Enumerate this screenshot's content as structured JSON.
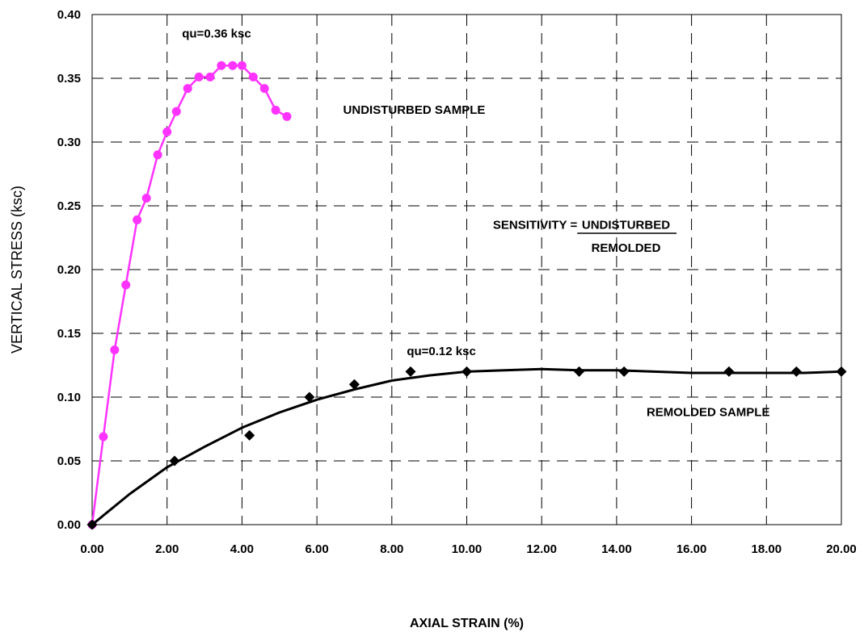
{
  "chart_data": {
    "type": "line",
    "title": "",
    "xlabel": "AXIAL STRAIN (%)",
    "ylabel": "VERTICAL STRESS (ksc)",
    "xlim": [
      0,
      20
    ],
    "ylim": [
      0,
      0.4
    ],
    "grid": true,
    "x_ticks": [
      "0.00",
      "2.00",
      "4.00",
      "6.00",
      "8.00",
      "10.00",
      "12.00",
      "14.00",
      "16.00",
      "18.00",
      "20.00"
    ],
    "y_ticks": [
      "0.00",
      "0.05",
      "0.10",
      "0.15",
      "0.20",
      "0.25",
      "0.30",
      "0.35",
      "0.40"
    ],
    "series": [
      {
        "name": "UNDISTURBED SAMPLE",
        "color": "#ff33ff",
        "marker": "circle",
        "points": [
          [
            0.0,
            0.0
          ],
          [
            0.3,
            0.069
          ],
          [
            0.6,
            0.137
          ],
          [
            0.9,
            0.188
          ],
          [
            1.2,
            0.239
          ],
          [
            1.45,
            0.256
          ],
          [
            1.75,
            0.29
          ],
          [
            2.0,
            0.308
          ],
          [
            2.25,
            0.324
          ],
          [
            2.55,
            0.342
          ],
          [
            2.85,
            0.351
          ],
          [
            3.15,
            0.351
          ],
          [
            3.45,
            0.36
          ],
          [
            3.75,
            0.36
          ],
          [
            4.0,
            0.36
          ],
          [
            4.3,
            0.351
          ],
          [
            4.6,
            0.342
          ],
          [
            4.9,
            0.325
          ],
          [
            5.2,
            0.32
          ]
        ]
      },
      {
        "name": "REMOLDED SAMPLE",
        "color": "#000000",
        "marker": "diamond",
        "points": [
          [
            0.0,
            0.0
          ],
          [
            2.2,
            0.05
          ],
          [
            4.2,
            0.07
          ],
          [
            5.8,
            0.1
          ],
          [
            7.0,
            0.11
          ],
          [
            8.5,
            0.12
          ],
          [
            10.0,
            0.12
          ],
          [
            13.0,
            0.12
          ],
          [
            14.2,
            0.12
          ],
          [
            17.0,
            0.12
          ],
          [
            18.8,
            0.12
          ],
          [
            20.0,
            0.12
          ]
        ],
        "trend": [
          [
            0.0,
            0.0
          ],
          [
            1.0,
            0.024
          ],
          [
            2.0,
            0.045
          ],
          [
            3.0,
            0.061
          ],
          [
            4.0,
            0.076
          ],
          [
            5.0,
            0.088
          ],
          [
            6.0,
            0.098
          ],
          [
            7.0,
            0.106
          ],
          [
            8.0,
            0.113
          ],
          [
            9.0,
            0.117
          ],
          [
            10.0,
            0.12
          ],
          [
            11.0,
            0.121
          ],
          [
            12.0,
            0.122
          ],
          [
            13.0,
            0.121
          ],
          [
            14.0,
            0.121
          ],
          [
            15.0,
            0.12
          ],
          [
            16.0,
            0.119
          ],
          [
            17.0,
            0.119
          ],
          [
            18.0,
            0.119
          ],
          [
            19.0,
            0.119
          ],
          [
            20.0,
            0.12
          ]
        ]
      }
    ],
    "annotations": {
      "qu_undisturbed": "qu=0.36 ksc",
      "qu_remolded": "qu=0.12 ksc",
      "undisturbed_label": "UNDISTURBED SAMPLE",
      "remolded_label": "REMOLDED SAMPLE",
      "sensitivity_prefix": "SENSITIVITY = ",
      "sensitivity_numerator": "UNDISTURBED",
      "sensitivity_denominator": "REMOLDED"
    }
  }
}
